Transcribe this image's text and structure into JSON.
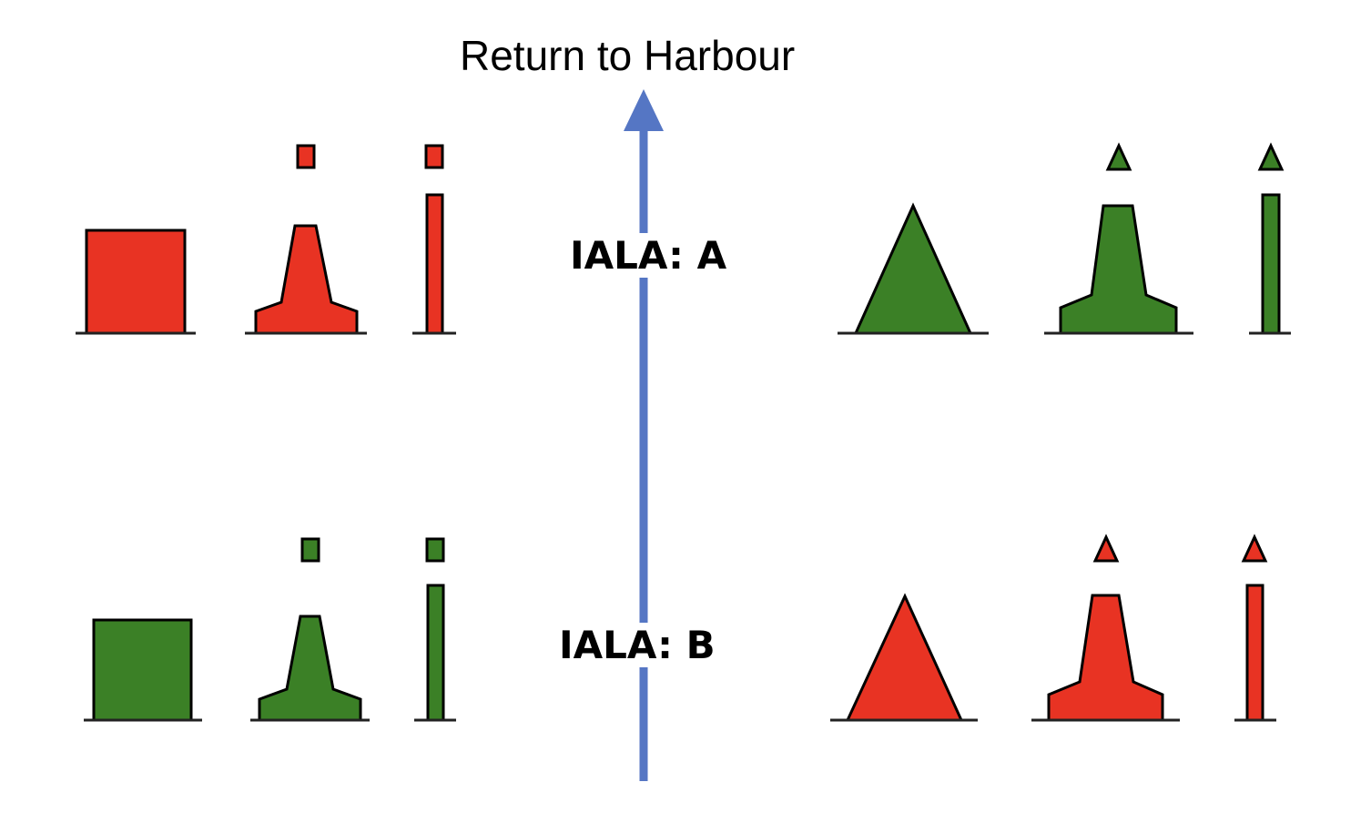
{
  "title": "Return to Harbour",
  "colors": {
    "red": "#e83323",
    "green": "#3b8026",
    "arrow": "#5576c4",
    "outline": "#000000"
  },
  "regions": [
    {
      "label": "IALA: A",
      "left_side": {
        "color": "red",
        "marks": [
          "can-buoy",
          "pillar-buoy-with-can-topmark",
          "spar-buoy-with-can-topmark"
        ]
      },
      "right_side": {
        "color": "green",
        "marks": [
          "conical-buoy",
          "pillar-buoy-with-cone-topmark",
          "spar-buoy-with-cone-topmark"
        ]
      }
    },
    {
      "label": "IALA: B",
      "left_side": {
        "color": "green",
        "marks": [
          "can-buoy",
          "pillar-buoy-with-can-topmark",
          "spar-buoy-with-can-topmark"
        ]
      },
      "right_side": {
        "color": "red",
        "marks": [
          "conical-buoy",
          "pillar-buoy-with-cone-topmark",
          "spar-buoy-with-cone-topmark"
        ]
      }
    }
  ]
}
